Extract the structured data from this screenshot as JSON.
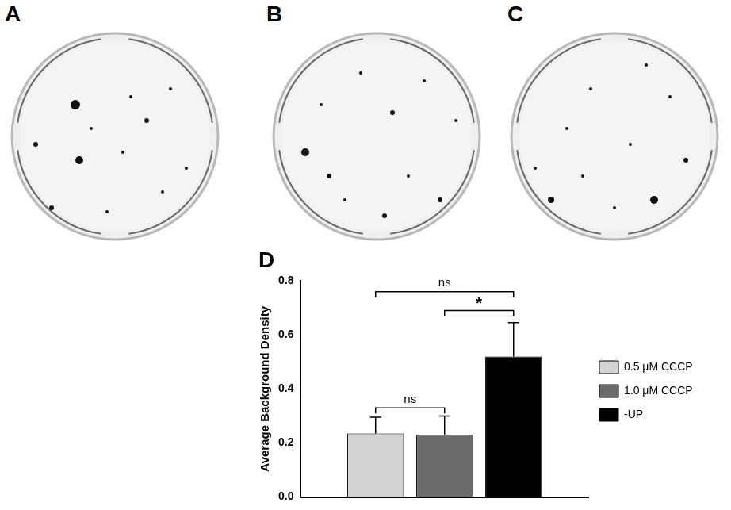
{
  "panels": [
    "A",
    "B",
    "C"
  ],
  "chart_label": "D",
  "chart_data": {
    "type": "bar",
    "categories": [
      null
    ],
    "series": [
      {
        "name": "0.5 μM CCCP",
        "color": "#d3d3d3",
        "values": [
          0.235
        ],
        "errors": [
          0.06
        ]
      },
      {
        "name": "1.0 μM CCCP",
        "color": "#6b6b6b",
        "values": [
          0.23
        ],
        "errors": [
          0.07
        ]
      },
      {
        "name": "-UP",
        "color": "#000000",
        "values": [
          0.52
        ],
        "errors": [
          0.125
        ]
      }
    ],
    "y_label": "Average Background Density",
    "ylim": [
      0,
      0.8
    ],
    "yticks": [
      {
        "value": 0,
        "label": "0.0"
      },
      0.2,
      0.4,
      0.6,
      0.8
    ],
    "grid": false,
    "legend": "right",
    "tick_labels": "y",
    "annotations": [
      {
        "text": "ns",
        "from": 0,
        "to": 2,
        "y": 0.76
      },
      {
        "text": "*",
        "from": 1,
        "to": 2,
        "y": 0.69
      },
      {
        "text": "ns",
        "from": 0,
        "to": 1,
        "y": 0.33
      }
    ]
  }
}
